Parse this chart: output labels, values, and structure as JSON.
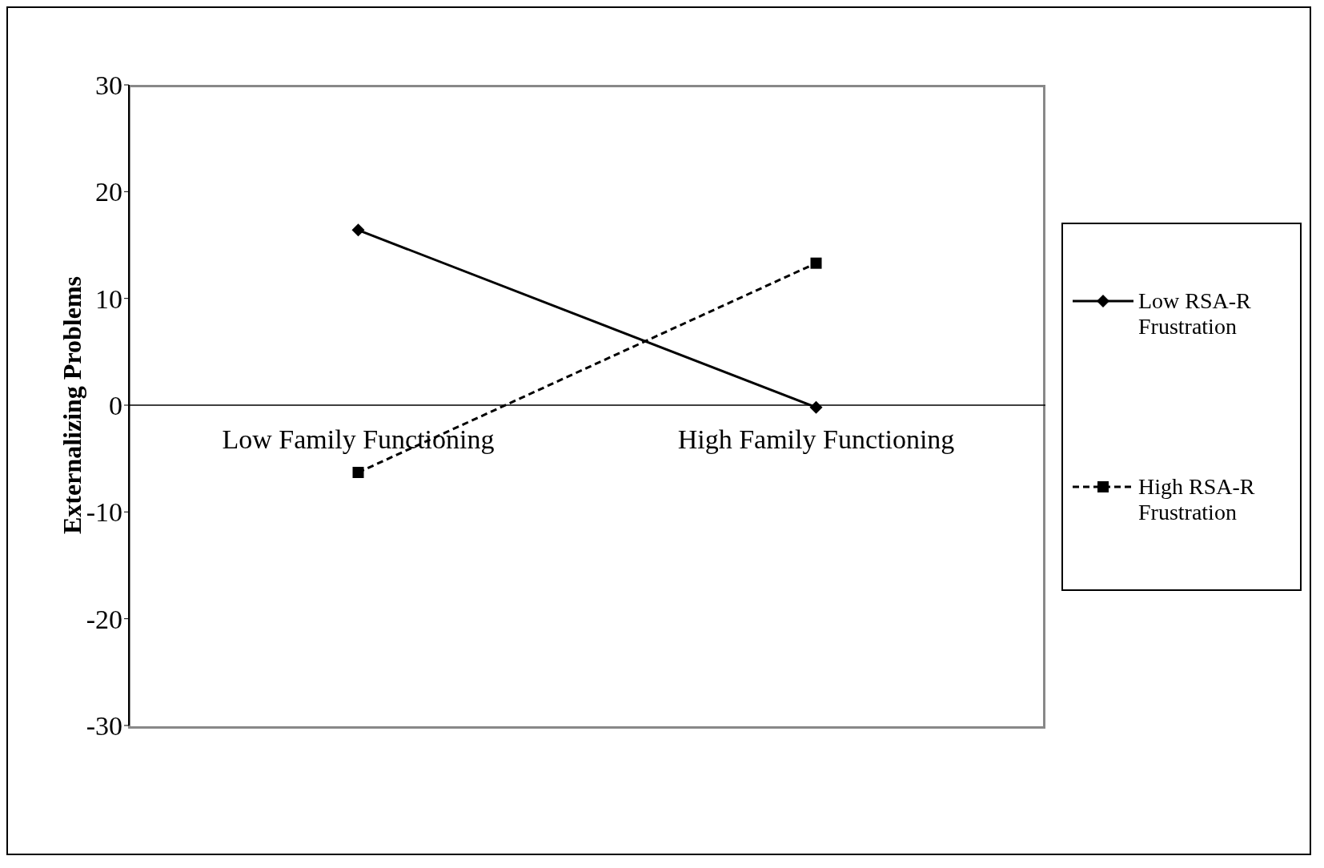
{
  "chart_data": {
    "type": "line",
    "ylabel": "Externalizing Problems",
    "categories": [
      "Low Family Functioning",
      "High Family Functioning"
    ],
    "series": [
      {
        "name": "Low RSA-R Frustration",
        "color": "#000000",
        "values": [
          16.4,
          -0.2
        ],
        "marker": "diamond",
        "line_style": "solid"
      },
      {
        "name": "High RSA-R Frustration",
        "color": "#000000",
        "values": [
          -6.3,
          13.3
        ],
        "marker": "square",
        "line_style": "dashed"
      }
    ],
    "ylim": [
      -30,
      30
    ],
    "yticks": [
      -30,
      -20,
      -10,
      0,
      10,
      20,
      30
    ],
    "legend": "right",
    "grid": false
  }
}
